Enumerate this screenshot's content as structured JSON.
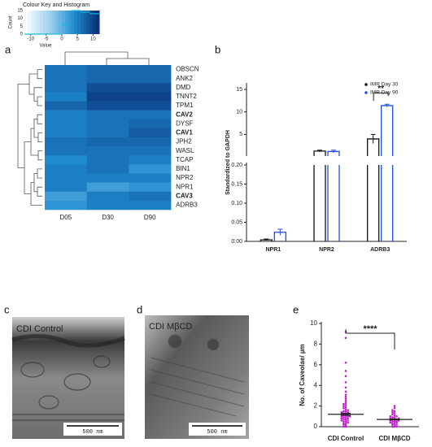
{
  "chart_data": [
    {
      "type": "heatmap",
      "panel": "a",
      "title": "Colour Key and Histogram",
      "zlabel": "Value",
      "count_label": "Count",
      "zlim": [
        -12,
        12
      ],
      "zticks": [
        -10,
        -5,
        0,
        5,
        10
      ],
      "colors": [
        "#ffffff",
        "#9fd3ee",
        "#1f8bcf",
        "#0a2a72"
      ],
      "hist_bins": [
        -12,
        -9,
        -6,
        -3,
        0,
        3,
        6,
        9,
        12
      ],
      "hist_counts": [
        0,
        0,
        0,
        0,
        6,
        15,
        14,
        13
      ],
      "hist_color": "#17b8d8",
      "count_lim": [
        0,
        15
      ],
      "count_ticks": [
        0,
        5,
        10,
        15
      ],
      "columns": [
        "D05",
        "D30",
        "D90"
      ],
      "rows": [
        "OBSCN",
        "ANK2",
        "DMD",
        "TNNT2",
        "TPM1",
        "CAV2",
        "DYSF",
        "CAV1",
        "JPH2",
        "WASL",
        "TCAP",
        "BIN1",
        "NPR2",
        "NPR1",
        "CAV3",
        "ADRB3"
      ],
      "row_label_colors": [
        "#222",
        "#222",
        "#222",
        "#222",
        "#222",
        "#c00000",
        "#222",
        "#c00000",
        "#222",
        "#222",
        "#222",
        "#222",
        "#222",
        "#222",
        "#c00000",
        "#222"
      ],
      "values": [
        [
          6,
          7,
          7
        ],
        [
          6,
          7,
          7
        ],
        [
          6,
          9,
          9
        ],
        [
          5,
          10,
          10
        ],
        [
          7,
          9,
          9
        ],
        [
          5,
          6,
          6
        ],
        [
          5,
          6,
          7
        ],
        [
          5,
          6,
          8
        ],
        [
          6,
          7,
          7
        ],
        [
          6,
          6,
          6
        ],
        [
          4,
          6,
          5
        ],
        [
          5,
          6,
          3
        ],
        [
          5,
          5,
          5
        ],
        [
          5,
          2,
          3
        ],
        [
          2,
          5,
          6
        ],
        [
          3,
          5,
          5
        ]
      ]
    },
    {
      "type": "broken-bar",
      "panel": "b",
      "ylabel": "Standardized to GAPDH",
      "categories": [
        "NPR1",
        "NPR2",
        "ADRB3"
      ],
      "lower_ylim": [
        0,
        0.2
      ],
      "lower_yticks": [
        {
          "value": 0,
          "label": "0.00"
        },
        {
          "value": 0.05,
          "label": "0.05"
        },
        {
          "value": 0.1,
          "label": "0.10"
        },
        {
          "value": 0.15,
          "label": "0.15"
        },
        {
          "value": 0.2,
          "label": "0.20"
        }
      ],
      "upper_ylim": [
        0.2,
        15
      ],
      "upper_yticks": [
        5,
        10,
        15
      ],
      "series": [
        {
          "name": "IMR Day 30",
          "color": "#111111",
          "values": [
            0.004,
            1.3,
            4.0
          ],
          "errors": [
            0.002,
            0.2,
            1.0
          ]
        },
        {
          "name": "IMR Day 90",
          "color": "#1f4fe0",
          "values": [
            0.024,
            1.2,
            11.4
          ],
          "errors": [
            0.008,
            0.3,
            0.3
          ]
        }
      ],
      "annotation": "**"
    },
    {
      "type": "image",
      "panel": "c",
      "label": "CDI Control",
      "scale": "500 nm"
    },
    {
      "type": "image",
      "panel": "d",
      "label": "CDI MβCD",
      "scale": "500 nm"
    },
    {
      "type": "dot",
      "panel": "e",
      "ylabel": "No. of Caveolae/ µm",
      "categories": [
        "CDI Control",
        "CDI MβCD"
      ],
      "color": "#c020c8",
      "ylim": [
        0,
        10
      ],
      "yticks": [
        0,
        2,
        4,
        6,
        8,
        10
      ],
      "values": [
        1.2,
        0.7
      ],
      "errors": [
        0.1,
        0.05
      ],
      "annotation": "****",
      "points": [
        [
          0,
          0,
          0.1,
          0.2,
          0.3,
          0.3,
          0.4,
          0.5,
          0.5,
          0.6,
          0.6,
          0.7,
          0.7,
          0.8,
          0.8,
          0.9,
          0.9,
          1,
          1,
          1,
          1.1,
          1.1,
          1.2,
          1.2,
          1.3,
          1.3,
          1.4,
          1.4,
          1.5,
          1.5,
          1.6,
          1.7,
          1.8,
          1.9,
          2,
          2.1,
          2.2,
          2.3,
          2.5,
          2.7,
          2.9,
          3.1,
          3.4,
          3.8,
          4.3,
          4.9,
          5.4,
          6.2,
          8.6,
          9.2
        ],
        [
          0,
          0,
          0,
          0.1,
          0.2,
          0.2,
          0.3,
          0.3,
          0.4,
          0.4,
          0.5,
          0.5,
          0.5,
          0.6,
          0.6,
          0.7,
          0.7,
          0.7,
          0.8,
          0.8,
          0.9,
          0.9,
          1,
          1,
          1.1,
          1.2,
          1.3,
          1.4,
          1.5,
          1.6,
          1.8,
          2
        ]
      ]
    }
  ]
}
